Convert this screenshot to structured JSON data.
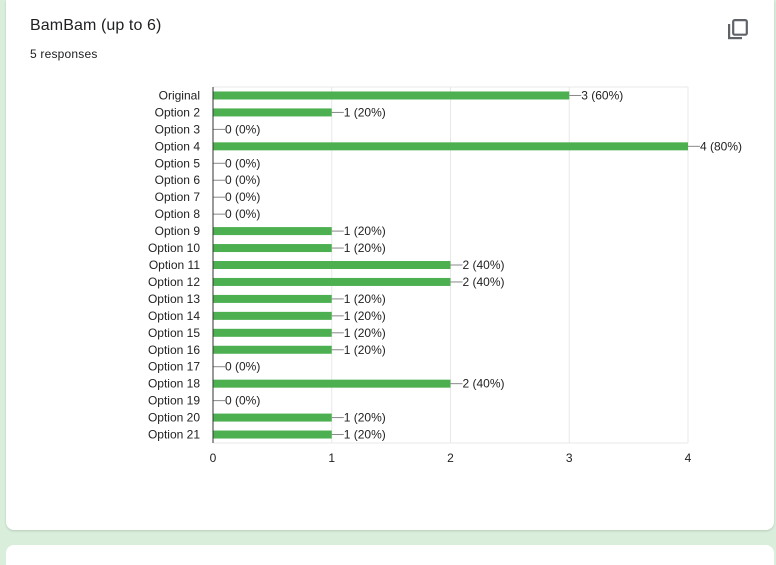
{
  "question": {
    "title": "BamBam (up to 6)",
    "responses": "5 responses",
    "copy_icon": "copy-icon"
  },
  "colors": {
    "bar": "#4caf50",
    "grid": "#e8e8e8",
    "axis": "#333333",
    "text": "#222222"
  },
  "chart_data": {
    "type": "bar",
    "orientation": "horizontal",
    "categories": [
      "Original",
      "Option 2",
      "Option 3",
      "Option 4",
      "Option 5",
      "Option 6",
      "Option 7",
      "Option 8",
      "Option 9",
      "Option 10",
      "Option 11",
      "Option 12",
      "Option 13",
      "Option 14",
      "Option 15",
      "Option 16",
      "Option 17",
      "Option 18",
      "Option 19",
      "Option 20",
      "Option 21"
    ],
    "values": [
      3,
      1,
      0,
      4,
      0,
      0,
      0,
      0,
      1,
      1,
      2,
      2,
      1,
      1,
      1,
      1,
      0,
      2,
      0,
      1,
      1
    ],
    "data_labels": [
      "3 (60%)",
      "1 (20%)",
      "0 (0%)",
      "4 (80%)",
      "0 (0%)",
      "0 (0%)",
      "0 (0%)",
      "0 (0%)",
      "1 (20%)",
      "1 (20%)",
      "2 (40%)",
      "2 (40%)",
      "1 (20%)",
      "1 (20%)",
      "1 (20%)",
      "1 (20%)",
      "0 (0%)",
      "2 (40%)",
      "0 (0%)",
      "1 (20%)",
      "1 (20%)"
    ],
    "xticks": [
      "0",
      "1",
      "2",
      "3",
      "4"
    ],
    "xlim": [
      0,
      4
    ],
    "grid": true
  }
}
